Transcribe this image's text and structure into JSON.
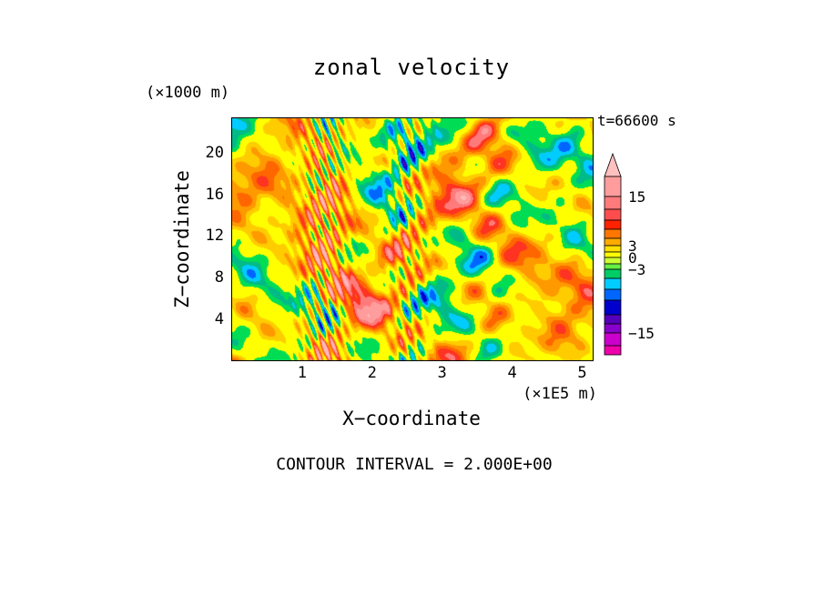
{
  "title": "zonal velocity",
  "annotation": "t=66600 s",
  "footer": "CONTOUR INTERVAL = 2.000E+00",
  "axes": {
    "x_label": "X−coordinate",
    "x_unit": "(×1E5 m)",
    "y_label": "Z−coordinate",
    "y_unit": "(×1000 m)",
    "x_ticks": [
      1,
      2,
      3,
      4,
      5
    ],
    "y_ticks": [
      4,
      8,
      12,
      16,
      20
    ]
  },
  "chart_data": {
    "type": "heatmap",
    "title": "zonal velocity",
    "xlabel": "X−coordinate (×1E5 m)",
    "ylabel": "Z−coordinate (×1000 m)",
    "x_range": [
      0,
      5.15
    ],
    "y_range": [
      0,
      23.2
    ],
    "x_ticks": [
      1,
      2,
      3,
      4,
      5
    ],
    "y_ticks": [
      4,
      8,
      12,
      16,
      20
    ],
    "time_annotation": "t=66600 s",
    "contour_interval": 2.0,
    "contour_interval_text": "CONTOUR INTERVAL = 2.000E+00",
    "colorbar_labels": [
      "15",
      "3",
      "0",
      "−3",
      "−15"
    ],
    "palette": [
      {
        "max": -14,
        "color": "#9900cc"
      },
      {
        "max": -12,
        "color": "#5500bb"
      },
      {
        "max": -10,
        "color": "#0000cc"
      },
      {
        "max": -8,
        "color": "#0066ff"
      },
      {
        "max": -6,
        "color": "#00ccff"
      },
      {
        "max": -4,
        "color": "#00bb88"
      },
      {
        "max": -2,
        "color": "#00dd55"
      },
      {
        "max": 2,
        "color": "#ffff00"
      },
      {
        "max": 4,
        "color": "#ffcc00"
      },
      {
        "max": 6,
        "color": "#ff9900"
      },
      {
        "max": 8,
        "color": "#ff6600"
      },
      {
        "max": 10,
        "color": "#ff3322"
      },
      {
        "max": 12,
        "color": "#ff7b7b"
      },
      {
        "max": 14,
        "color": "#ff9d9d"
      },
      {
        "max": 999,
        "color": "#ffb9b9"
      }
    ],
    "colorbar_arrow": {
      "color": "#ffc0c0",
      "h": 26
    },
    "colorbar_segments": [
      {
        "color": "#ff9d9d",
        "h": 22,
        "label": "15"
      },
      {
        "color": "#ff7b7b",
        "h": 14
      },
      {
        "color": "#ff4d4d",
        "h": 12
      },
      {
        "color": "#ff2200",
        "h": 10
      },
      {
        "color": "#ff7700",
        "h": 10
      },
      {
        "color": "#ffaa00",
        "h": 8,
        "label": "3"
      },
      {
        "color": "#ffe000",
        "h": 7
      },
      {
        "color": "#ffff00",
        "h": 6,
        "label": "0"
      },
      {
        "color": "#ccff33",
        "h": 7
      },
      {
        "color": "#66ee44",
        "h": 6,
        "label": "−3"
      },
      {
        "color": "#00cc66",
        "h": 10
      },
      {
        "color": "#00ccff",
        "h": 12
      },
      {
        "color": "#0066ff",
        "h": 12
      },
      {
        "color": "#0000cc",
        "h": 16
      },
      {
        "color": "#5500bb",
        "h": 10
      },
      {
        "color": "#8800cc",
        "h": 10,
        "label": "−15"
      },
      {
        "color": "#cc00cc",
        "h": 14
      },
      {
        "color": "#ee00aa",
        "h": 10
      }
    ]
  }
}
